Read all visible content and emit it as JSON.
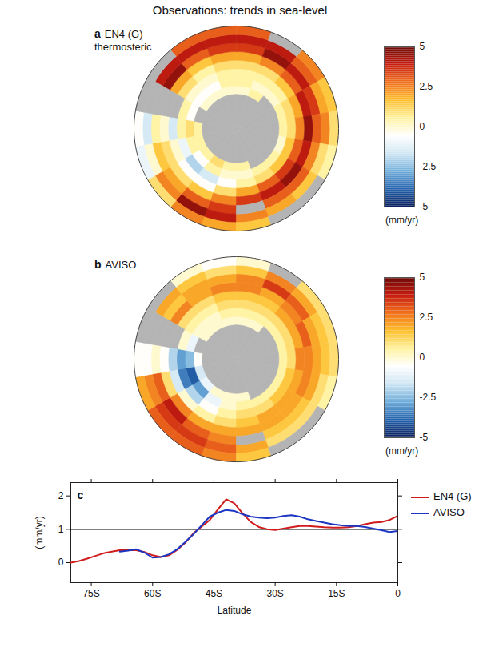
{
  "title": "Observations: trends in sea-level",
  "chart_data": [
    {
      "type": "heatmap",
      "panel": "a",
      "title": "EN4 (G)",
      "subtitle": "thermosteric",
      "lat_edges": [
        -90,
        -70,
        -65,
        -60,
        -55,
        -50,
        -45,
        -40,
        -35,
        -30
      ],
      "lon_edges": [
        -180,
        -160,
        -140,
        -120,
        -100,
        -80,
        -60,
        -40,
        -20,
        0,
        20,
        40,
        60,
        80,
        100,
        120,
        140,
        160,
        180
      ],
      "cells": [
        [
          null,
          null,
          null,
          null,
          null,
          null,
          null,
          null,
          null,
          null,
          null,
          null,
          null,
          null,
          null,
          null,
          null,
          null
        ],
        [
          0.5,
          1,
          0.5,
          0.5,
          0.5,
          null,
          0,
          0,
          0,
          0,
          0.5,
          null,
          null,
          null,
          null,
          null,
          null,
          0.5
        ],
        [
          0,
          0.5,
          -0.5,
          0.5,
          1,
          -0.5,
          -0.5,
          -0.5,
          0.5,
          0.5,
          0,
          0,
          0.5,
          0.5,
          0,
          0.5,
          0.5,
          0
        ],
        [
          -0.5,
          -1.5,
          -2,
          -1,
          0.5,
          0.5,
          0,
          0,
          0.5,
          0.5,
          0.5,
          0.5,
          1,
          1,
          1.5,
          1.5,
          1,
          0.5
        ],
        [
          1,
          -0.5,
          -0.5,
          0,
          -1.5,
          null,
          1,
          0.5,
          1,
          1,
          1,
          1.5,
          2,
          2.5,
          3,
          3.5,
          3,
          2
        ],
        [
          2.5,
          1.5,
          1,
          1,
          0,
          null,
          2,
          1.5,
          2,
          2,
          2.5,
          3,
          4,
          4.5,
          4,
          4.5,
          4,
          3.5
        ],
        [
          3.5,
          3,
          2,
          1.5,
          0.5,
          null,
          4.5,
          3,
          3.5,
          3.5,
          4.5,
          4,
          3.5,
          3,
          2.5,
          3,
          3,
          null
        ],
        [
          4,
          4.5,
          2.5,
          0,
          -1.5,
          null,
          4,
          4,
          4,
          4,
          4,
          3,
          2,
          2.5,
          1,
          1.5,
          2,
          2.5
        ],
        [
          2,
          2.5,
          1,
          -1,
          -0.5,
          null,
          null,
          3,
          3,
          3,
          null,
          2.5,
          1.5,
          1,
          0.5,
          null,
          null,
          1.5
        ]
      ],
      "colorbar": {
        "range": [
          -5,
          5
        ],
        "ticks": [
          5,
          2.5,
          0,
          -2.5,
          -5
        ],
        "label": "(mm/yr)",
        "colors": [
          "#0a1f5e",
          "#2463ad",
          "#71aedb",
          "#cfe6f3",
          "#ffffff",
          "#fff2a0",
          "#fdbf2e",
          "#f0701e",
          "#c61d10",
          "#6a0906"
        ]
      }
    },
    {
      "type": "heatmap",
      "panel": "b",
      "title": "AVISO",
      "lat_edges": [
        -90,
        -70,
        -65,
        -60,
        -55,
        -50,
        -45,
        -40,
        -35,
        -30
      ],
      "lon_edges": [
        -180,
        -160,
        -140,
        -120,
        -100,
        -80,
        -60,
        -40,
        -20,
        0,
        20,
        40,
        60,
        80,
        100,
        120,
        140,
        160,
        180
      ],
      "cells": [
        [
          null,
          null,
          null,
          null,
          null,
          null,
          null,
          null,
          null,
          null,
          null,
          null,
          null,
          null,
          null,
          null,
          null,
          null
        ],
        [
          0,
          0,
          -1,
          -1.5,
          -0.5,
          null,
          0,
          0,
          0,
          0,
          0,
          null,
          null,
          null,
          null,
          null,
          null,
          0
        ],
        [
          0,
          -1,
          -3,
          -4,
          -2.5,
          -1,
          0,
          0,
          0.5,
          0.5,
          0.5,
          0.5,
          0.5,
          0.5,
          0.5,
          0.5,
          0.5,
          0.5
        ],
        [
          0.5,
          -0.5,
          -2,
          -3.5,
          -3,
          0,
          0.5,
          0.5,
          1,
          1,
          1,
          1,
          1,
          1,
          1.5,
          1.5,
          1,
          1
        ],
        [
          1,
          0.5,
          0,
          -1.5,
          -2,
          null,
          1,
          1,
          1.5,
          1.5,
          1.5,
          2,
          2,
          2.5,
          2,
          2,
          2,
          1.5
        ],
        [
          2,
          2,
          2.5,
          1,
          -0.5,
          null,
          2.5,
          2,
          2.5,
          2.5,
          2,
          2.5,
          3,
          2.5,
          2.5,
          2,
          2,
          2
        ],
        [
          2.5,
          3,
          4,
          3,
          0,
          null,
          1.5,
          2,
          2,
          2.5,
          3.5,
          3,
          2,
          2,
          2,
          1.5,
          1.5,
          null
        ],
        [
          3,
          3.5,
          3.5,
          2.5,
          -0.5,
          null,
          2,
          1.5,
          1,
          1.5,
          2.5,
          2,
          1.5,
          1.5,
          1,
          1,
          1,
          2
        ],
        [
          2.5,
          3,
          3,
          2,
          -0.5,
          null,
          null,
          0,
          -0.5,
          0,
          null,
          1,
          1,
          1,
          0.5,
          null,
          null,
          1.5
        ]
      ],
      "colorbar": {
        "range": [
          -5,
          5
        ],
        "ticks": [
          5,
          2.5,
          0,
          -2.5,
          -5
        ],
        "label": "(mm/yr)",
        "colors": [
          "#0a1f5e",
          "#2463ad",
          "#71aedb",
          "#cfe6f3",
          "#ffffff",
          "#fff2a0",
          "#fdbf2e",
          "#f0701e",
          "#c61d10",
          "#6a0906"
        ]
      }
    },
    {
      "type": "line",
      "panel": "c",
      "xlabel": "Latitude",
      "ylabel": "(mm/yr)",
      "x": [
        -80,
        -78,
        -76,
        -74,
        -72,
        -70,
        -68,
        -66,
        -64,
        -62,
        -60,
        -58,
        -56,
        -54,
        -52,
        -50,
        -48,
        -46,
        -44,
        -42,
        -40,
        -38,
        -36,
        -34,
        -32,
        -30,
        -28,
        -26,
        -24,
        -22,
        -20,
        -18,
        -16,
        -14,
        -12,
        -10,
        -8,
        -6,
        -4,
        -2,
        0
      ],
      "series": [
        {
          "name": "EN4 (G)",
          "color": "#d01c1c",
          "values": [
            0,
            0.05,
            0.12,
            0.2,
            0.28,
            0.33,
            0.37,
            0.38,
            0.37,
            0.32,
            0.22,
            0.17,
            0.22,
            0.38,
            0.6,
            0.88,
            1.08,
            1.28,
            1.6,
            1.9,
            1.78,
            1.48,
            1.22,
            1.07,
            1.0,
            0.98,
            1.02,
            1.06,
            1.1,
            1.1,
            1.08,
            1.06,
            1.05,
            1.05,
            1.06,
            1.1,
            1.15,
            1.2,
            1.22,
            1.28,
            1.4
          ]
        },
        {
          "name": "AVISO",
          "color": "#1c36c4",
          "values": [
            null,
            null,
            null,
            null,
            null,
            null,
            0.33,
            0.36,
            0.4,
            0.3,
            0.15,
            0.17,
            0.25,
            0.4,
            0.62,
            0.85,
            1.12,
            1.38,
            1.5,
            1.58,
            1.55,
            1.45,
            1.38,
            1.35,
            1.33,
            1.35,
            1.4,
            1.42,
            1.38,
            1.3,
            1.25,
            1.2,
            1.15,
            1.12,
            1.1,
            1.1,
            1.07,
            1.02,
            0.97,
            0.92,
            0.95
          ]
        }
      ],
      "xlim": [
        -80,
        0
      ],
      "xticks": [
        {
          "value": -75,
          "label": "75S"
        },
        {
          "value": -60,
          "label": "60S"
        },
        {
          "value": -45,
          "label": "45S"
        },
        {
          "value": -30,
          "label": "30S"
        },
        {
          "value": -15,
          "label": "15S"
        },
        0
      ],
      "ylim": [
        -0.6,
        2.4
      ],
      "yticks": [
        0,
        1,
        2
      ],
      "reference_line": 1,
      "legend": "right"
    }
  ]
}
